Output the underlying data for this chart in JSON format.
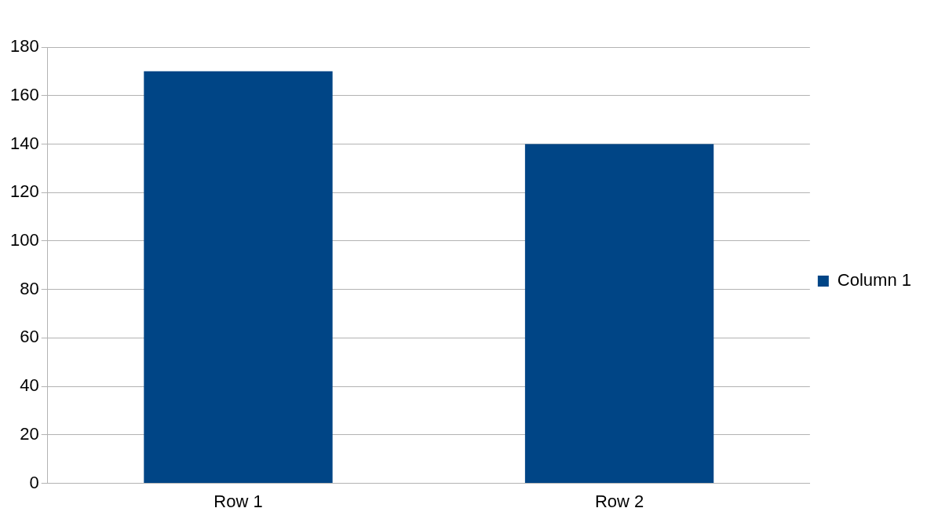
{
  "chart_data": {
    "type": "bar",
    "categories": [
      "Row 1",
      "Row 2"
    ],
    "series": [
      {
        "name": "Column 1",
        "color": "#004586",
        "values": [
          170,
          140
        ]
      }
    ],
    "ylim": [
      0,
      180
    ],
    "yticks": [
      0,
      20,
      40,
      60,
      80,
      100,
      120,
      140,
      160,
      180
    ],
    "grid": "y",
    "legend": "right"
  }
}
